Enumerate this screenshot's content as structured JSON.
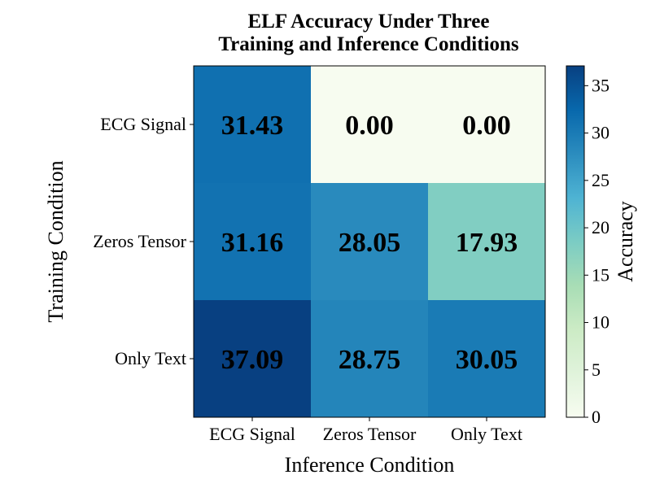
{
  "chart_data": {
    "type": "heatmap",
    "title_lines": [
      "ELF Accuracy Under Three",
      "Training and Inference Conditions"
    ],
    "xlabel": "Inference Condition",
    "ylabel": "Training Condition",
    "x_categories": [
      "ECG Signal",
      "Zeros Tensor",
      "Only Text"
    ],
    "y_categories": [
      "ECG Signal",
      "Zeros Tensor",
      "Only Text"
    ],
    "values": [
      [
        31.43,
        0.0,
        0.0
      ],
      [
        31.16,
        28.05,
        17.93
      ],
      [
        37.09,
        28.75,
        30.05
      ]
    ],
    "value_labels": [
      [
        "31.43",
        "0.00",
        "0.00"
      ],
      [
        "31.16",
        "28.05",
        "17.93"
      ],
      [
        "37.09",
        "28.75",
        "30.05"
      ]
    ],
    "colormap": "GnBu",
    "colorbar": {
      "label": "Accuracy",
      "range": [
        0,
        37.09
      ],
      "ticks": [
        "0",
        "5",
        "10",
        "15",
        "20",
        "25",
        "30",
        "35"
      ]
    }
  }
}
